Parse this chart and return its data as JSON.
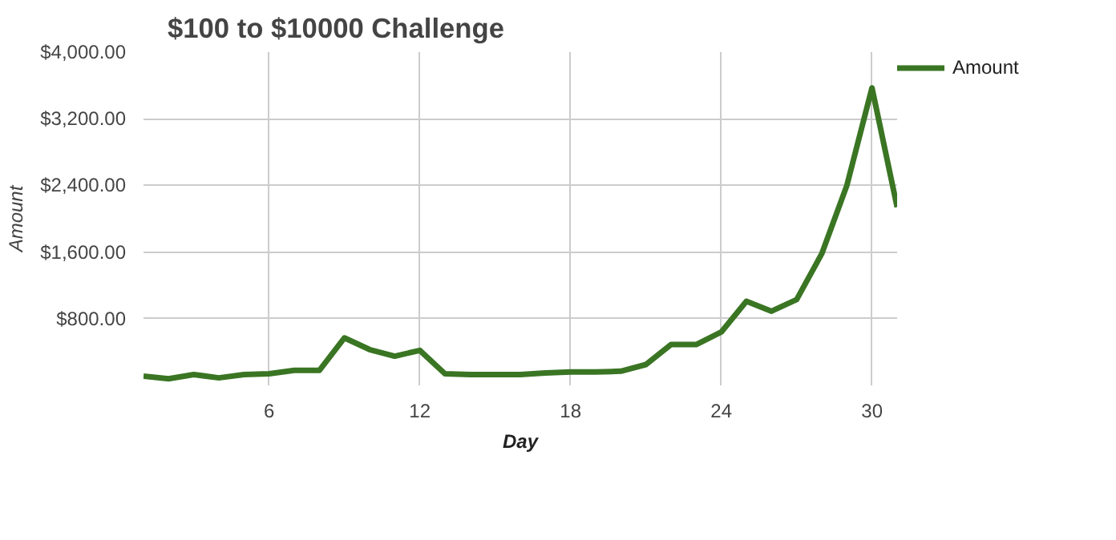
{
  "chart_data": {
    "type": "line",
    "title": "$100 to $10000 Challenge",
    "xlabel": "Day",
    "ylabel": "Amount",
    "x": [
      1,
      2,
      3,
      4,
      5,
      6,
      7,
      8,
      9,
      10,
      11,
      12,
      13,
      14,
      15,
      16,
      17,
      18,
      19,
      20,
      21,
      22,
      23,
      24,
      25,
      26,
      27,
      28,
      29,
      30,
      31
    ],
    "series": [
      {
        "name": "Amount",
        "color": "#3a7523",
        "values": [
          110,
          80,
          130,
          90,
          130,
          140,
          180,
          180,
          570,
          430,
          350,
          420,
          140,
          130,
          130,
          130,
          150,
          160,
          160,
          170,
          250,
          490,
          490,
          640,
          1010,
          890,
          1030,
          1580,
          2400,
          3570,
          2140
        ]
      }
    ],
    "xlim": [
      1,
      31
    ],
    "xticks": [
      6,
      12,
      18,
      24,
      30
    ],
    "ylim": [
      0,
      4000
    ],
    "yticks": [
      {
        "value": 800,
        "label": "$800.00"
      },
      {
        "value": 1600,
        "label": "$1,600.00"
      },
      {
        "value": 2400,
        "label": "$2,400.00"
      },
      {
        "value": 3200,
        "label": "$3,200.00"
      },
      {
        "value": 4000,
        "label": "$4,000.00"
      }
    ],
    "grid": true,
    "legend": "top right",
    "line_style": "solid",
    "marker": "none"
  }
}
